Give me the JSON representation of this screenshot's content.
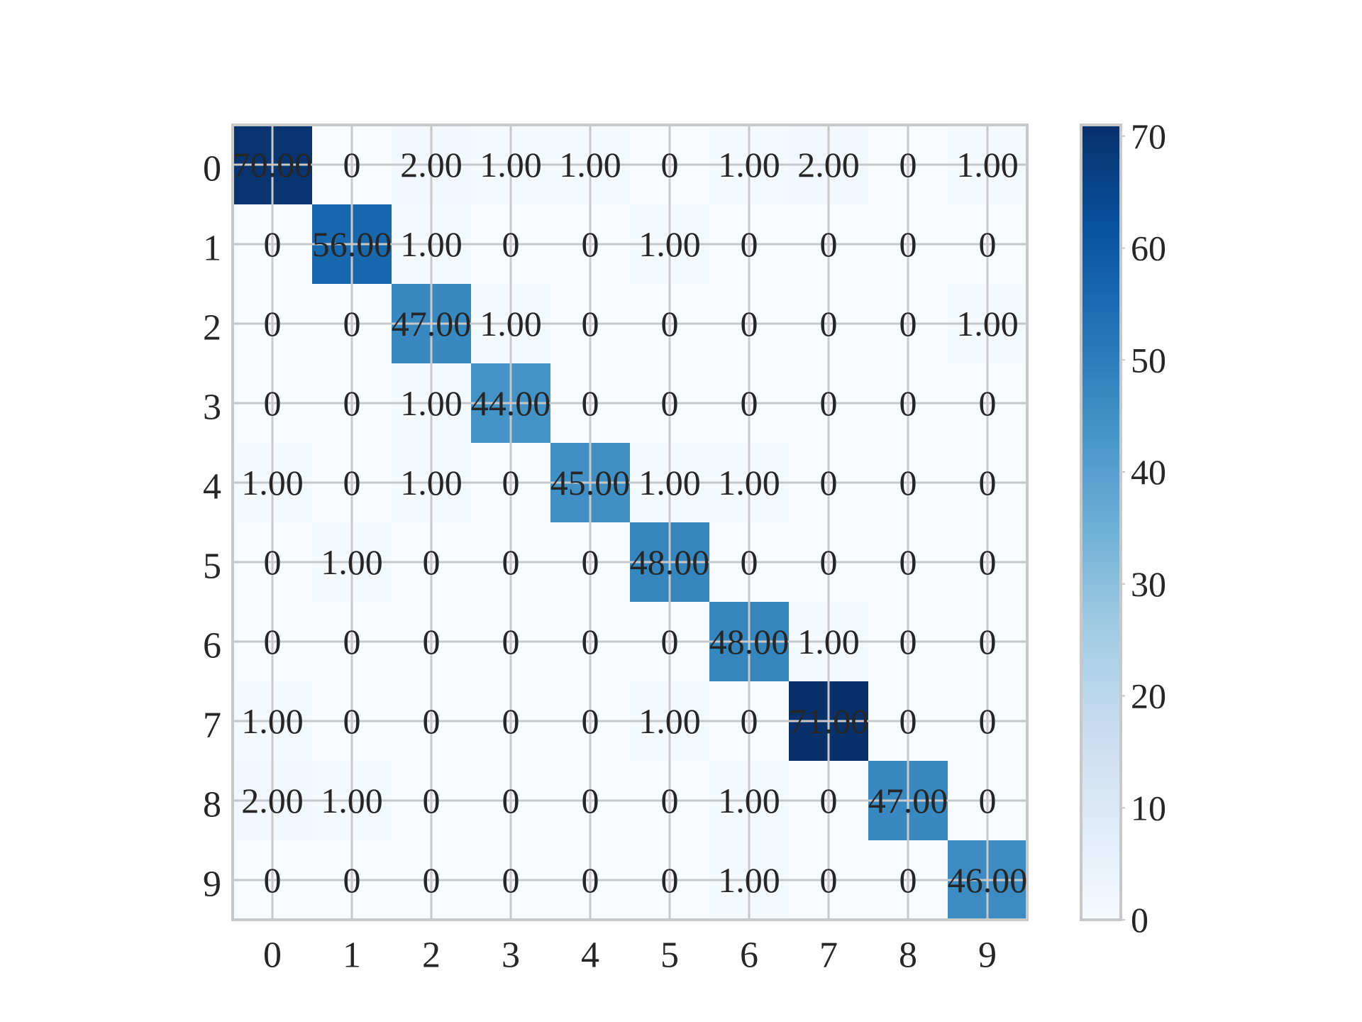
{
  "chart_data": {
    "type": "heatmap",
    "title": "",
    "xlabel": "",
    "ylabel": "",
    "x_tick_labels": [
      "0",
      "1",
      "2",
      "3",
      "4",
      "5",
      "6",
      "7",
      "8",
      "9"
    ],
    "y_tick_labels": [
      "0",
      "1",
      "2",
      "3",
      "4",
      "5",
      "6",
      "7",
      "8",
      "9"
    ],
    "matrix": [
      [
        70,
        0,
        2,
        1,
        1,
        0,
        1,
        2,
        0,
        1
      ],
      [
        0,
        56,
        1,
        0,
        0,
        1,
        0,
        0,
        0,
        0
      ],
      [
        0,
        0,
        47,
        1,
        0,
        0,
        0,
        0,
        0,
        1
      ],
      [
        0,
        0,
        1,
        44,
        0,
        0,
        0,
        0,
        0,
        0
      ],
      [
        1,
        0,
        1,
        0,
        45,
        1,
        1,
        0,
        0,
        0
      ],
      [
        0,
        1,
        0,
        0,
        0,
        48,
        0,
        0,
        0,
        0
      ],
      [
        0,
        0,
        0,
        0,
        0,
        0,
        48,
        1,
        0,
        0
      ],
      [
        1,
        0,
        0,
        0,
        0,
        1,
        0,
        71,
        0,
        0
      ],
      [
        2,
        1,
        0,
        0,
        0,
        0,
        1,
        0,
        47,
        0
      ],
      [
        0,
        0,
        0,
        0,
        0,
        0,
        1,
        0,
        0,
        46
      ]
    ],
    "cell_labels": [
      [
        "70.00",
        "0",
        "2.00",
        "1.00",
        "1.00",
        "0",
        "1.00",
        "2.00",
        "0",
        "1.00"
      ],
      [
        "0",
        "56.00",
        "1.00",
        "0",
        "0",
        "1.00",
        "0",
        "0",
        "0",
        "0"
      ],
      [
        "0",
        "0",
        "47.00",
        "1.00",
        "0",
        "0",
        "0",
        "0",
        "0",
        "1.00"
      ],
      [
        "0",
        "0",
        "1.00",
        "44.00",
        "0",
        "0",
        "0",
        "0",
        "0",
        "0"
      ],
      [
        "1.00",
        "0",
        "1.00",
        "0",
        "45.00",
        "1.00",
        "1.00",
        "0",
        "0",
        "0"
      ],
      [
        "0",
        "1.00",
        "0",
        "0",
        "0",
        "48.00",
        "0",
        "0",
        "0",
        "0"
      ],
      [
        "0",
        "0",
        "0",
        "0",
        "0",
        "0",
        "48.00",
        "1.00",
        "0",
        "0"
      ],
      [
        "1.00",
        "0",
        "0",
        "0",
        "0",
        "1.00",
        "0",
        "71.00",
        "0",
        "0"
      ],
      [
        "2.00",
        "1.00",
        "0",
        "0",
        "0",
        "0",
        "1.00",
        "0",
        "47.00",
        "0"
      ],
      [
        "0",
        "0",
        "0",
        "0",
        "0",
        "0",
        "1.00",
        "0",
        "0",
        "46.00"
      ]
    ],
    "colormap": "Blues",
    "color_range": [
      0,
      71
    ],
    "colorbar_ticks": [
      0,
      10,
      20,
      30,
      40,
      50,
      60,
      70
    ],
    "colorbar_tick_labels": [
      "0",
      "10",
      "20",
      "30",
      "40",
      "50",
      "60",
      "70"
    ],
    "grid": true,
    "colors": {
      "grid": "#c8c8c8",
      "text": "#262626",
      "cmap_low": "#f7fbff",
      "cmap_high": "#08306b"
    }
  }
}
